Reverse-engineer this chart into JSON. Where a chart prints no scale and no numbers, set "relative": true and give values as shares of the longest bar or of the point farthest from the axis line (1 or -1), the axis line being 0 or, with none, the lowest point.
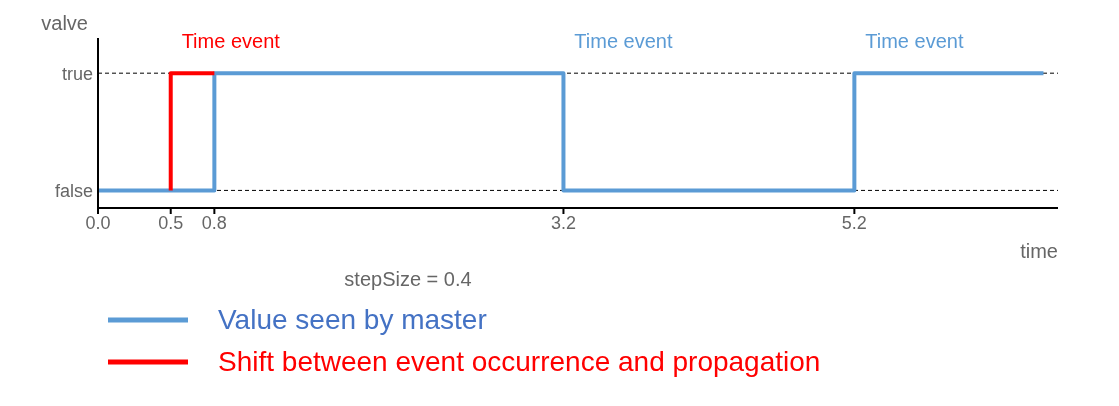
{
  "chart_data": {
    "type": "step",
    "xlabel": "time",
    "ylabel": "valve",
    "xlim": [
      0,
      6.6
    ],
    "relative": true,
    "xticks": [
      {
        "value": 0,
        "label": "0.0"
      },
      0.5,
      0.8,
      3.2,
      5.2
    ],
    "ref_lines": [
      {
        "axis": "y",
        "value": 1,
        "label": "true",
        "line_style": "dashed"
      },
      {
        "axis": "y",
        "value": 0,
        "label": "false",
        "line_style": "dashed"
      }
    ],
    "legend": "bottom",
    "series": [
      {
        "name": "Value seen by master",
        "color": "#5b9bd5",
        "x": [
          0,
          0.8,
          3.2,
          5.2,
          6.5
        ],
        "values": [
          0,
          1,
          0,
          1,
          1
        ]
      },
      {
        "name": "Shift between event occurrence and propagation",
        "color": "#ff0000",
        "x": [
          0.5,
          0.5,
          0.8
        ],
        "values": [
          0,
          1,
          1
        ]
      }
    ],
    "annotations": [
      {
        "text": "Time event",
        "x": 0.5,
        "y": 1
      },
      {
        "text": "Time event",
        "x": 3.2,
        "y": 1
      },
      {
        "text": "Time event",
        "x": 5.2,
        "y": 1
      },
      "stepSize = 0.4"
    ]
  }
}
